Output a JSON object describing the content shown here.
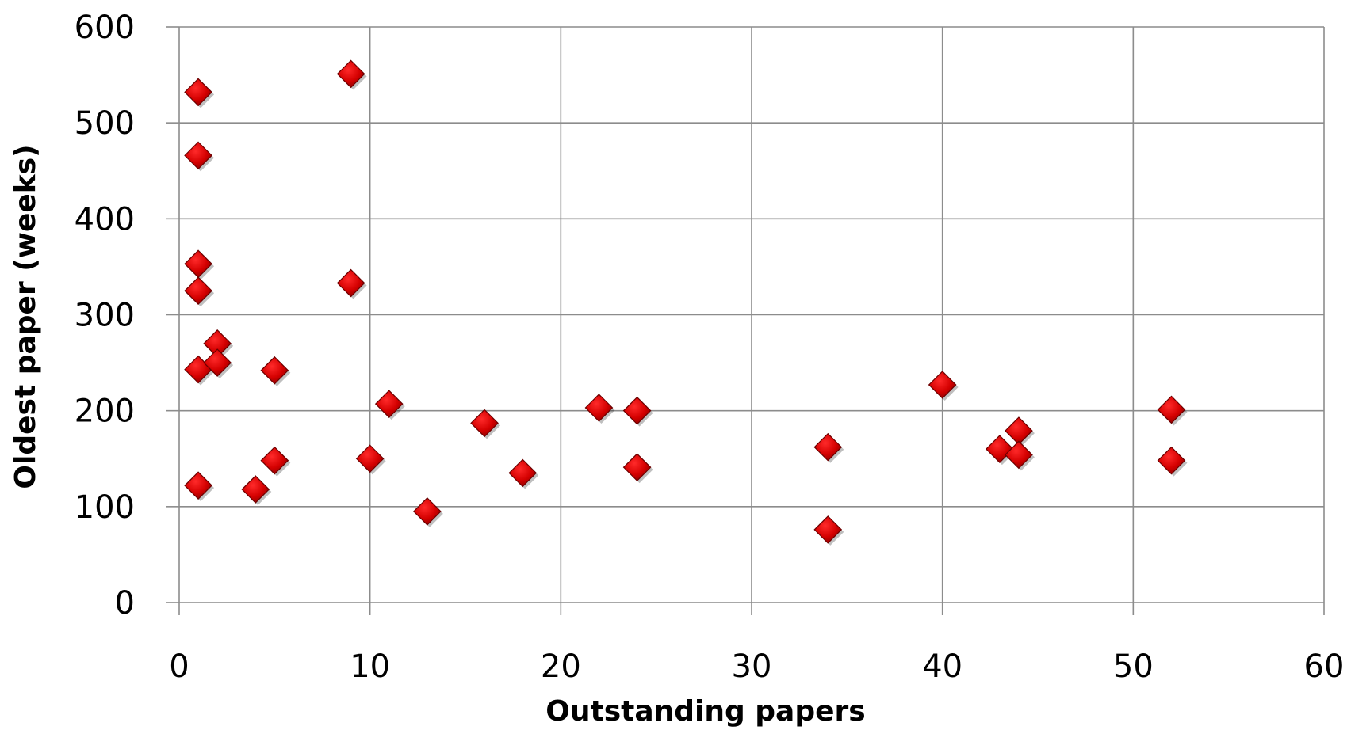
{
  "chart_data": {
    "type": "scatter",
    "xlabel": "Outstanding papers",
    "ylabel": "Oldest paper (weeks)",
    "xlim": [
      0,
      60
    ],
    "ylim": [
      0,
      600
    ],
    "x_ticks": [
      0,
      10,
      20,
      30,
      40,
      50,
      60
    ],
    "y_ticks": [
      0,
      100,
      200,
      300,
      400,
      500,
      600
    ],
    "grid": true,
    "legend": "none",
    "marker": "diamond",
    "colors": {
      "marker": "#d40000",
      "marker_edge": "#6b0000",
      "grid": "#8c8c8c"
    },
    "points": [
      {
        "x": 1,
        "y": 532
      },
      {
        "x": 1,
        "y": 466
      },
      {
        "x": 1,
        "y": 353
      },
      {
        "x": 1,
        "y": 325
      },
      {
        "x": 1,
        "y": 243
      },
      {
        "x": 1,
        "y": 122
      },
      {
        "x": 2,
        "y": 270
      },
      {
        "x": 2,
        "y": 250
      },
      {
        "x": 4,
        "y": 118
      },
      {
        "x": 5,
        "y": 242
      },
      {
        "x": 5,
        "y": 148
      },
      {
        "x": 9,
        "y": 551
      },
      {
        "x": 9,
        "y": 333
      },
      {
        "x": 10,
        "y": 150
      },
      {
        "x": 11,
        "y": 207
      },
      {
        "x": 13,
        "y": 95
      },
      {
        "x": 16,
        "y": 187
      },
      {
        "x": 18,
        "y": 135
      },
      {
        "x": 22,
        "y": 203
      },
      {
        "x": 24,
        "y": 200
      },
      {
        "x": 24,
        "y": 141
      },
      {
        "x": 34,
        "y": 162
      },
      {
        "x": 34,
        "y": 76
      },
      {
        "x": 40,
        "y": 227
      },
      {
        "x": 43,
        "y": 160
      },
      {
        "x": 44,
        "y": 179
      },
      {
        "x": 44,
        "y": 154
      },
      {
        "x": 52,
        "y": 201
      },
      {
        "x": 52,
        "y": 148
      }
    ]
  }
}
